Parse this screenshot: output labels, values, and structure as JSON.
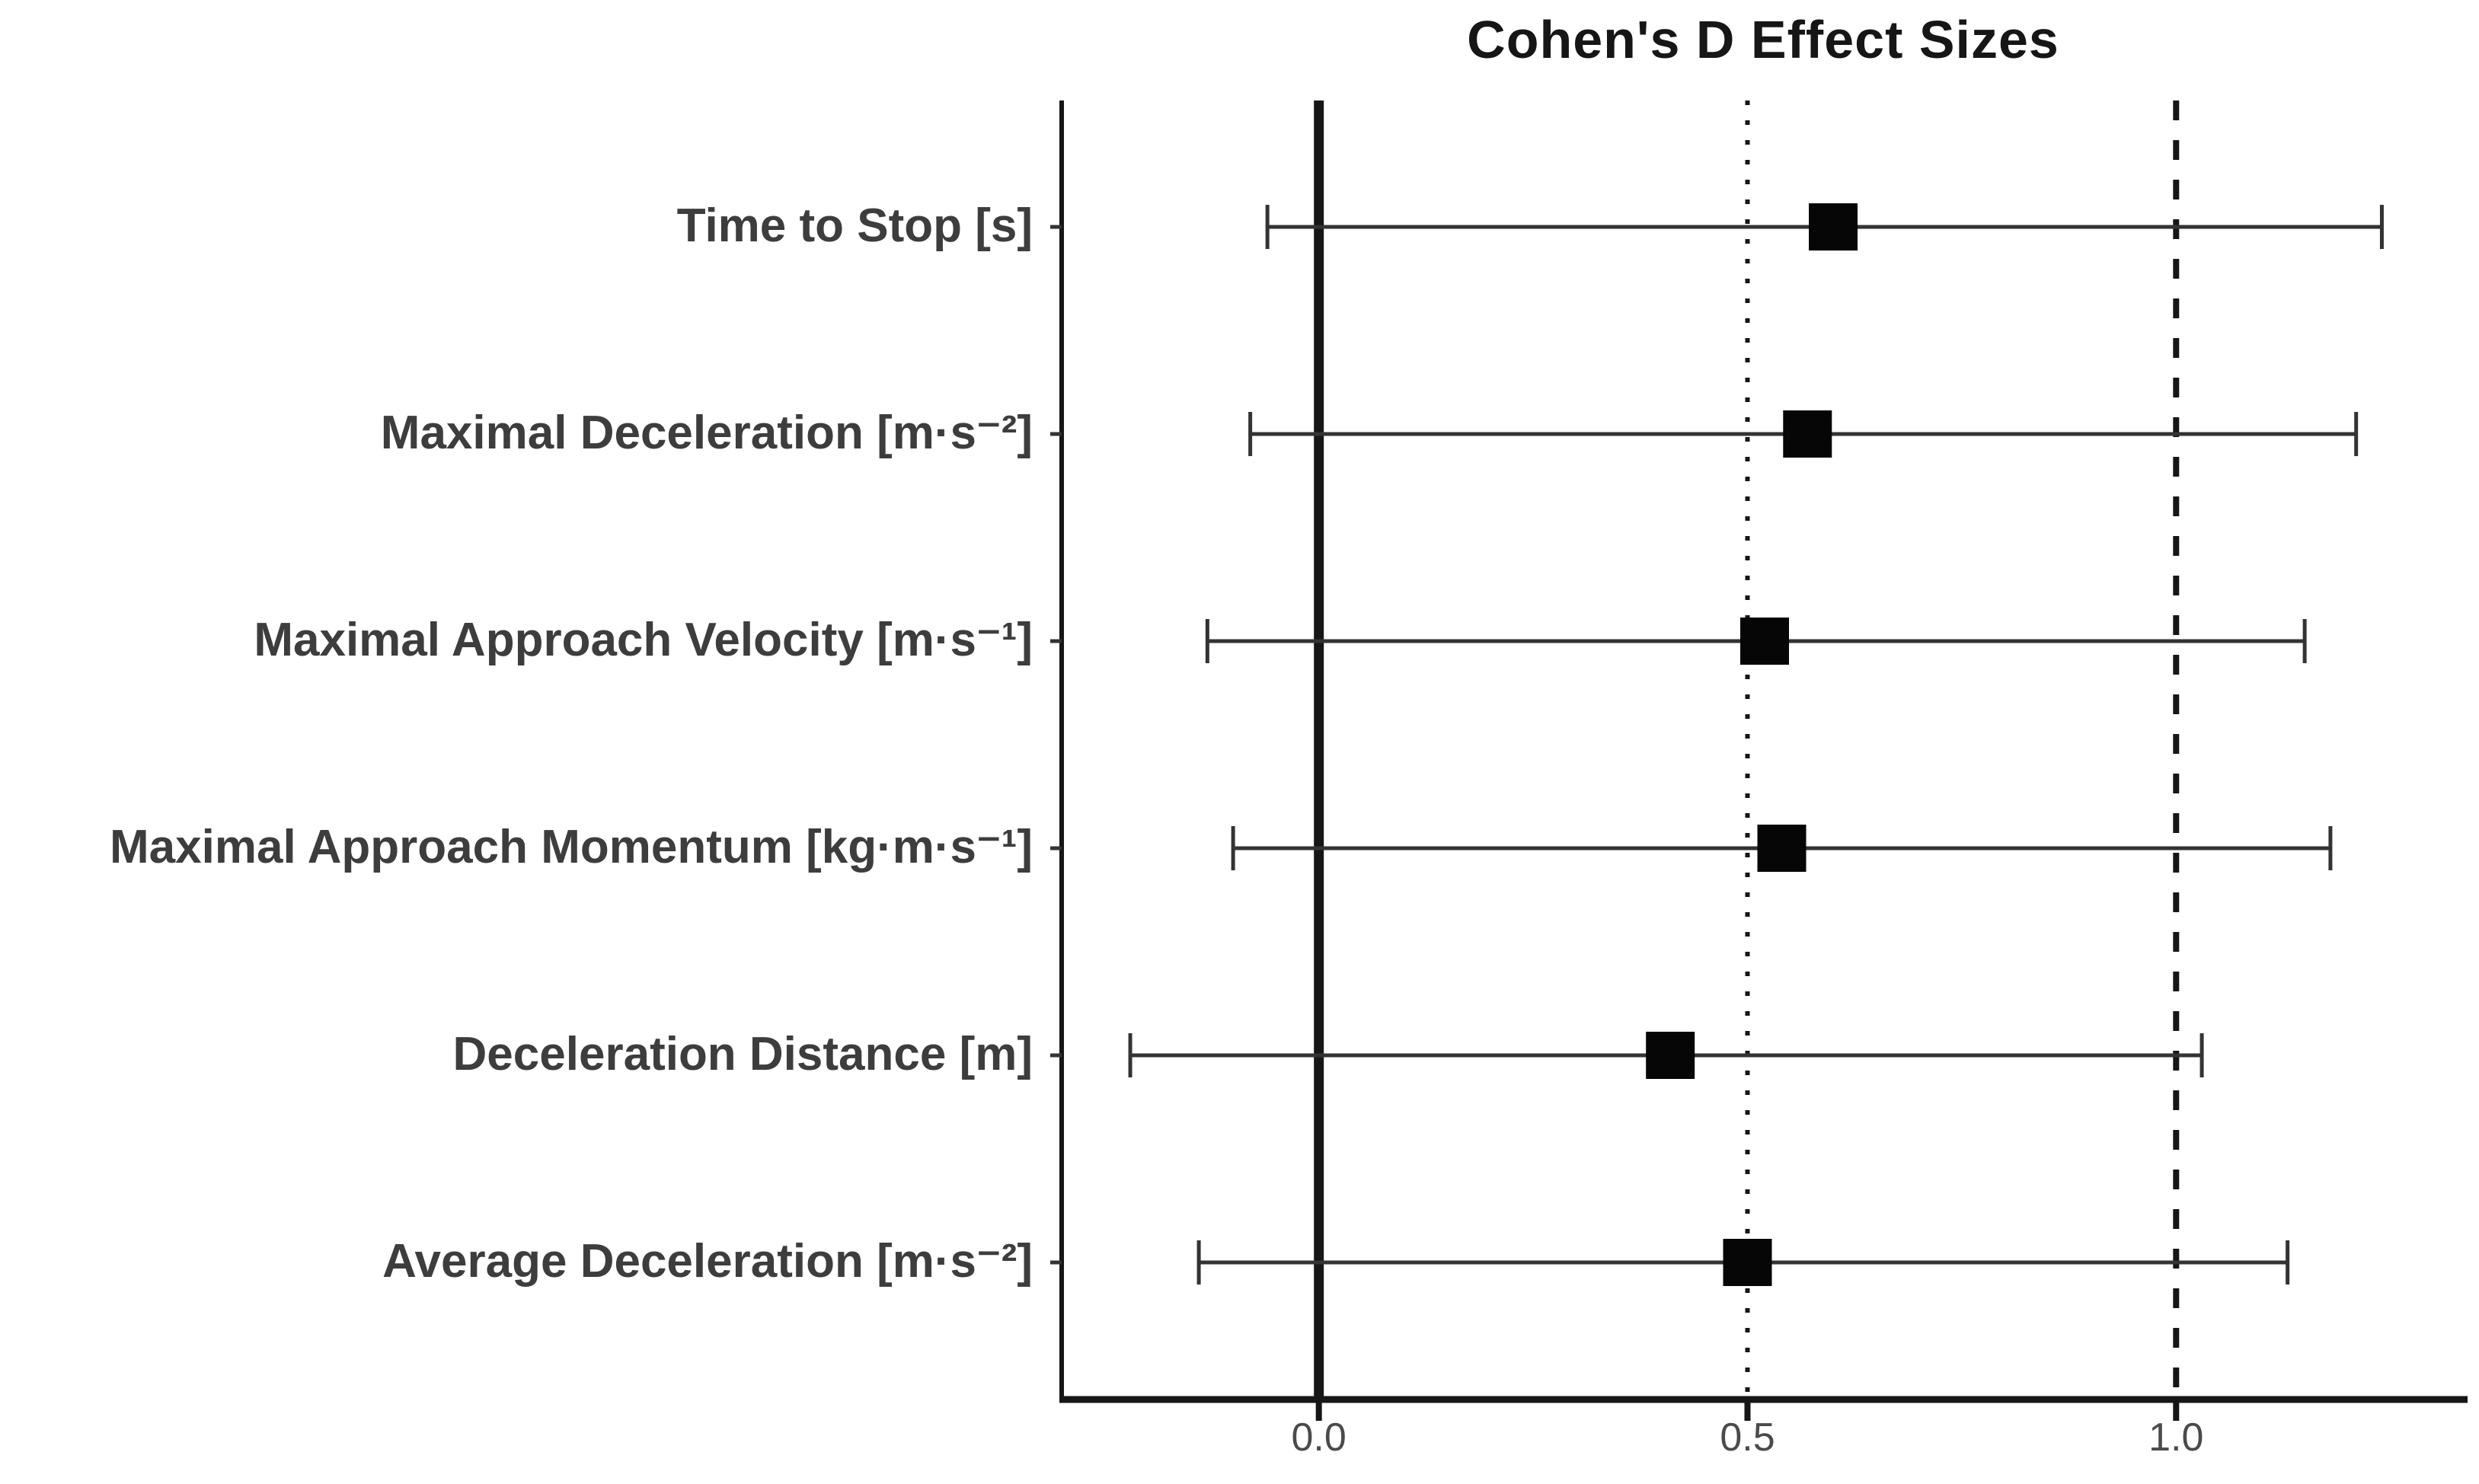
{
  "page": {
    "background": "#ffffff"
  },
  "chart_data": {
    "type": "scatter",
    "subtype": "forest-plot",
    "title": "Cohen's D Effect Sizes",
    "orientation": "horizontal",
    "marker": "square",
    "categories": [
      "Time to Stop [s]",
      "Maximal Deceleration [m·s⁻²]",
      "Maximal Approach Velocity [m·s⁻¹]",
      "Maximal Approach Momentum [kg·m·s⁻¹]",
      "Deceleration Distance [m]",
      "Average Deceleration [m·s⁻²]"
    ],
    "series": [
      {
        "name": "Cohen's d",
        "values": [
          0.6,
          0.57,
          0.52,
          0.54,
          0.41,
          0.5
        ],
        "ci_low": [
          -0.06,
          -0.08,
          -0.13,
          -0.1,
          -0.22,
          -0.14
        ],
        "ci_high": [
          1.24,
          1.21,
          1.15,
          1.18,
          1.03,
          1.13
        ]
      }
    ],
    "xlabel": "",
    "ylabel": "",
    "x_tick_labels": [
      "0.0",
      "0.5",
      "1.0"
    ],
    "x_tick_values": [
      0.0,
      0.5,
      1.0
    ],
    "xlim": [
      -0.3,
      1.34
    ],
    "grid": false,
    "legend": false,
    "reference_lines": [
      {
        "value": 0.0,
        "style": "solid"
      },
      {
        "value": 0.5,
        "style": "dotted"
      },
      {
        "value": 1.0,
        "style": "dashed"
      }
    ],
    "colors": {
      "marker": "#060606",
      "error_bar": "#333333",
      "axis": "#161616",
      "reference_line": "#161616",
      "category_label": "#3d3d3d",
      "tick_label": "#4a4a4a",
      "title": "#161616",
      "background": "#ffffff"
    }
  }
}
